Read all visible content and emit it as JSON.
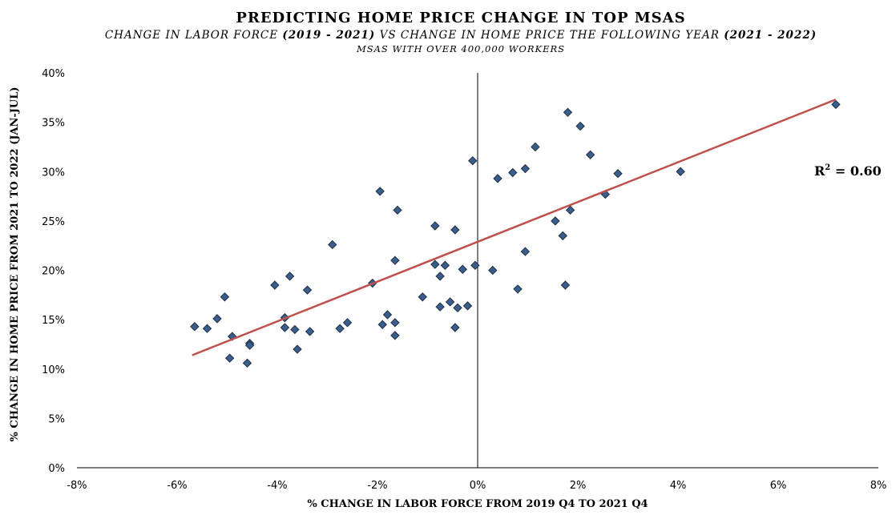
{
  "chart_data": {
    "type": "scatter",
    "title": "PREDICTING HOME PRICE CHANGE IN TOP MSAS",
    "subtitle": {
      "pre": "CHANGE IN LABOR FORCE ",
      "b1": "(2019 - 2021)",
      "mid": " VS CHANGE IN HOME PRICE THE FOLLOWING YEAR ",
      "b2": "(2021 - 2022)"
    },
    "subtitle2": "MSAS WITH OVER 400,000 WORKERS",
    "xlabel": "% CHANGE IN LABOR FORCE FROM 2019 Q4 TO 2021 Q4",
    "ylabel": "% CHANGE IN HOME PRICE FROM 2021 TO 2022 (JAN-JUL)",
    "xlim": [
      -8,
      8
    ],
    "ylim": [
      0,
      40
    ],
    "xticks": [
      -8,
      -6,
      -4,
      -2,
      0,
      2,
      4,
      6,
      8
    ],
    "yticks": [
      0,
      5,
      10,
      15,
      20,
      25,
      30,
      35,
      40
    ],
    "xtick_labels": [
      "-8%",
      "-6%",
      "-4%",
      "-2%",
      "0%",
      "2%",
      "4%",
      "6%",
      "8%"
    ],
    "ytick_labels": [
      "0%",
      "5%",
      "10%",
      "15%",
      "20%",
      "25%",
      "30%",
      "35%",
      "40%"
    ],
    "grid": false,
    "marker_color": "#3a5e8c",
    "marker_edge": "#1f2f44",
    "trendline_color": "#c0504d",
    "trendline": {
      "x": [
        -5.7,
        7.15
      ],
      "y": [
        11.4,
        37.3
      ]
    },
    "annotation": {
      "base": "R",
      "sup": "2",
      "rest": " = 0.60"
    },
    "points": [
      {
        "x": -5.65,
        "y": 14.3
      },
      {
        "x": -5.4,
        "y": 14.1
      },
      {
        "x": -5.2,
        "y": 15.1
      },
      {
        "x": -5.05,
        "y": 17.3
      },
      {
        "x": -4.95,
        "y": 11.1
      },
      {
        "x": -4.9,
        "y": 13.3
      },
      {
        "x": -4.55,
        "y": 12.6
      },
      {
        "x": -4.55,
        "y": 12.4
      },
      {
        "x": -4.6,
        "y": 10.6
      },
      {
        "x": -4.05,
        "y": 18.5
      },
      {
        "x": -3.85,
        "y": 15.2
      },
      {
        "x": -3.85,
        "y": 14.2
      },
      {
        "x": -3.75,
        "y": 19.4
      },
      {
        "x": -3.65,
        "y": 14.0
      },
      {
        "x": -3.6,
        "y": 12.0
      },
      {
        "x": -3.4,
        "y": 18.0
      },
      {
        "x": -3.35,
        "y": 13.8
      },
      {
        "x": -2.9,
        "y": 22.6
      },
      {
        "x": -2.75,
        "y": 14.1
      },
      {
        "x": -2.6,
        "y": 14.7
      },
      {
        "x": -2.1,
        "y": 18.7
      },
      {
        "x": -1.95,
        "y": 28.0
      },
      {
        "x": -1.9,
        "y": 14.5
      },
      {
        "x": -1.8,
        "y": 15.5
      },
      {
        "x": -1.65,
        "y": 21.0
      },
      {
        "x": -1.65,
        "y": 14.7
      },
      {
        "x": -1.65,
        "y": 13.4
      },
      {
        "x": -1.6,
        "y": 26.1
      },
      {
        "x": -1.1,
        "y": 17.3
      },
      {
        "x": -0.85,
        "y": 20.6
      },
      {
        "x": -0.85,
        "y": 24.5
      },
      {
        "x": -0.75,
        "y": 19.4
      },
      {
        "x": -0.75,
        "y": 16.3
      },
      {
        "x": -0.65,
        "y": 20.5
      },
      {
        "x": -0.55,
        "y": 16.8
      },
      {
        "x": -0.45,
        "y": 24.1
      },
      {
        "x": -0.45,
        "y": 14.2
      },
      {
        "x": -0.4,
        "y": 16.2
      },
      {
        "x": -0.3,
        "y": 20.1
      },
      {
        "x": -0.2,
        "y": 16.4
      },
      {
        "x": -0.1,
        "y": 31.1
      },
      {
        "x": -0.05,
        "y": 20.5
      },
      {
        "x": 0.3,
        "y": 20.0
      },
      {
        "x": 0.4,
        "y": 29.3
      },
      {
        "x": 0.7,
        "y": 29.9
      },
      {
        "x": 0.8,
        "y": 18.1
      },
      {
        "x": 0.95,
        "y": 30.3
      },
      {
        "x": 0.95,
        "y": 21.9
      },
      {
        "x": 1.15,
        "y": 32.5
      },
      {
        "x": 1.55,
        "y": 25.0
      },
      {
        "x": 1.7,
        "y": 23.5
      },
      {
        "x": 1.75,
        "y": 18.5
      },
      {
        "x": 1.8,
        "y": 36.0
      },
      {
        "x": 1.85,
        "y": 26.1
      },
      {
        "x": 2.05,
        "y": 34.6
      },
      {
        "x": 2.25,
        "y": 31.7
      },
      {
        "x": 2.55,
        "y": 27.7
      },
      {
        "x": 2.8,
        "y": 29.8
      },
      {
        "x": 4.05,
        "y": 30.0
      },
      {
        "x": 7.15,
        "y": 36.8
      }
    ]
  }
}
